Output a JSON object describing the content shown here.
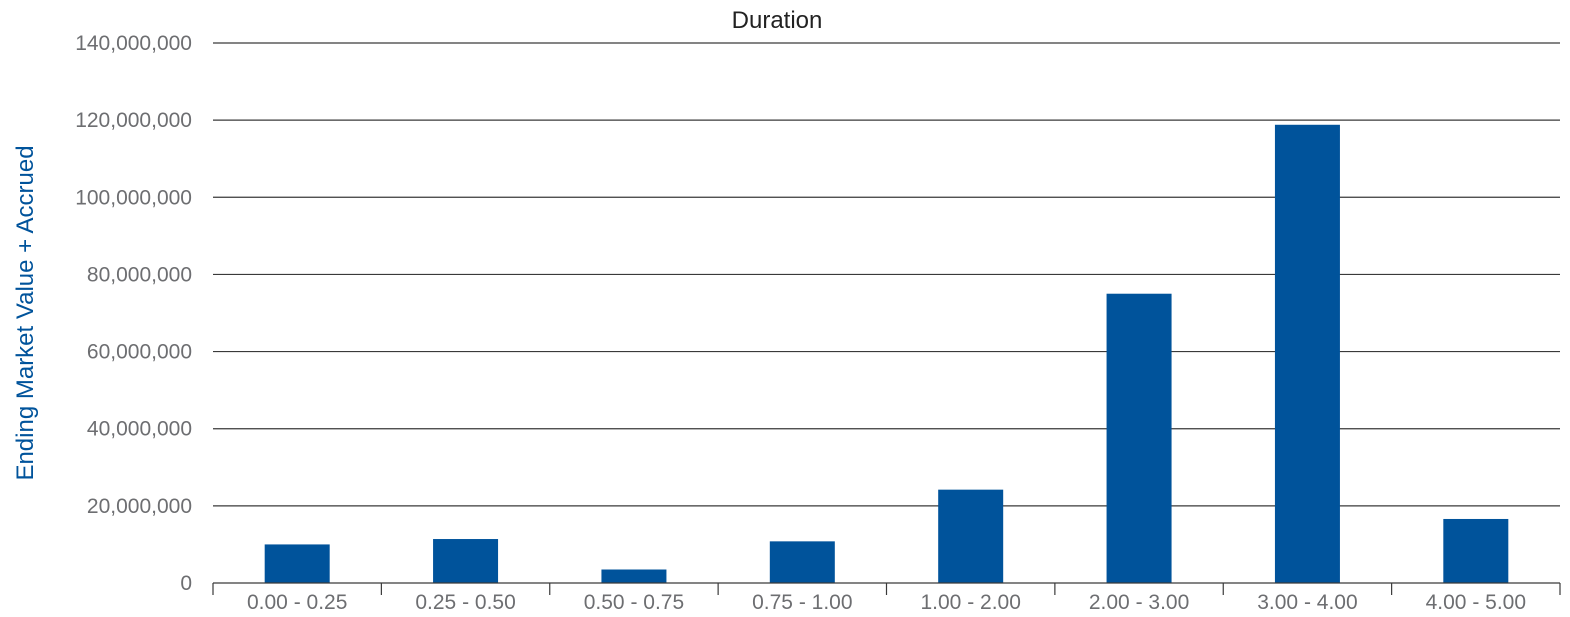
{
  "chart_data": {
    "type": "bar",
    "title": "Duration",
    "xlabel": "",
    "ylabel": "Ending Market Value + Accrued",
    "categories": [
      "0.00 - 0.25",
      "0.25 - 0.50",
      "0.50 - 0.75",
      "0.75 - 1.00",
      "1.00 - 2.00",
      "2.00 - 3.00",
      "3.00 - 4.00",
      "4.00 - 5.00"
    ],
    "values": [
      10000000,
      11400000,
      3500000,
      10800000,
      24200000,
      75000000,
      118800000,
      16600000
    ],
    "ylim": [
      0,
      140000000
    ],
    "yticks": [
      "0",
      "20,000,000",
      "40,000,000",
      "60,000,000",
      "80,000,000",
      "100,000,000",
      "120,000,000",
      "140,000,000"
    ],
    "grid": true,
    "legend": "none"
  },
  "colors": {
    "bar": "#00539b",
    "ylabel": "#00539b"
  }
}
